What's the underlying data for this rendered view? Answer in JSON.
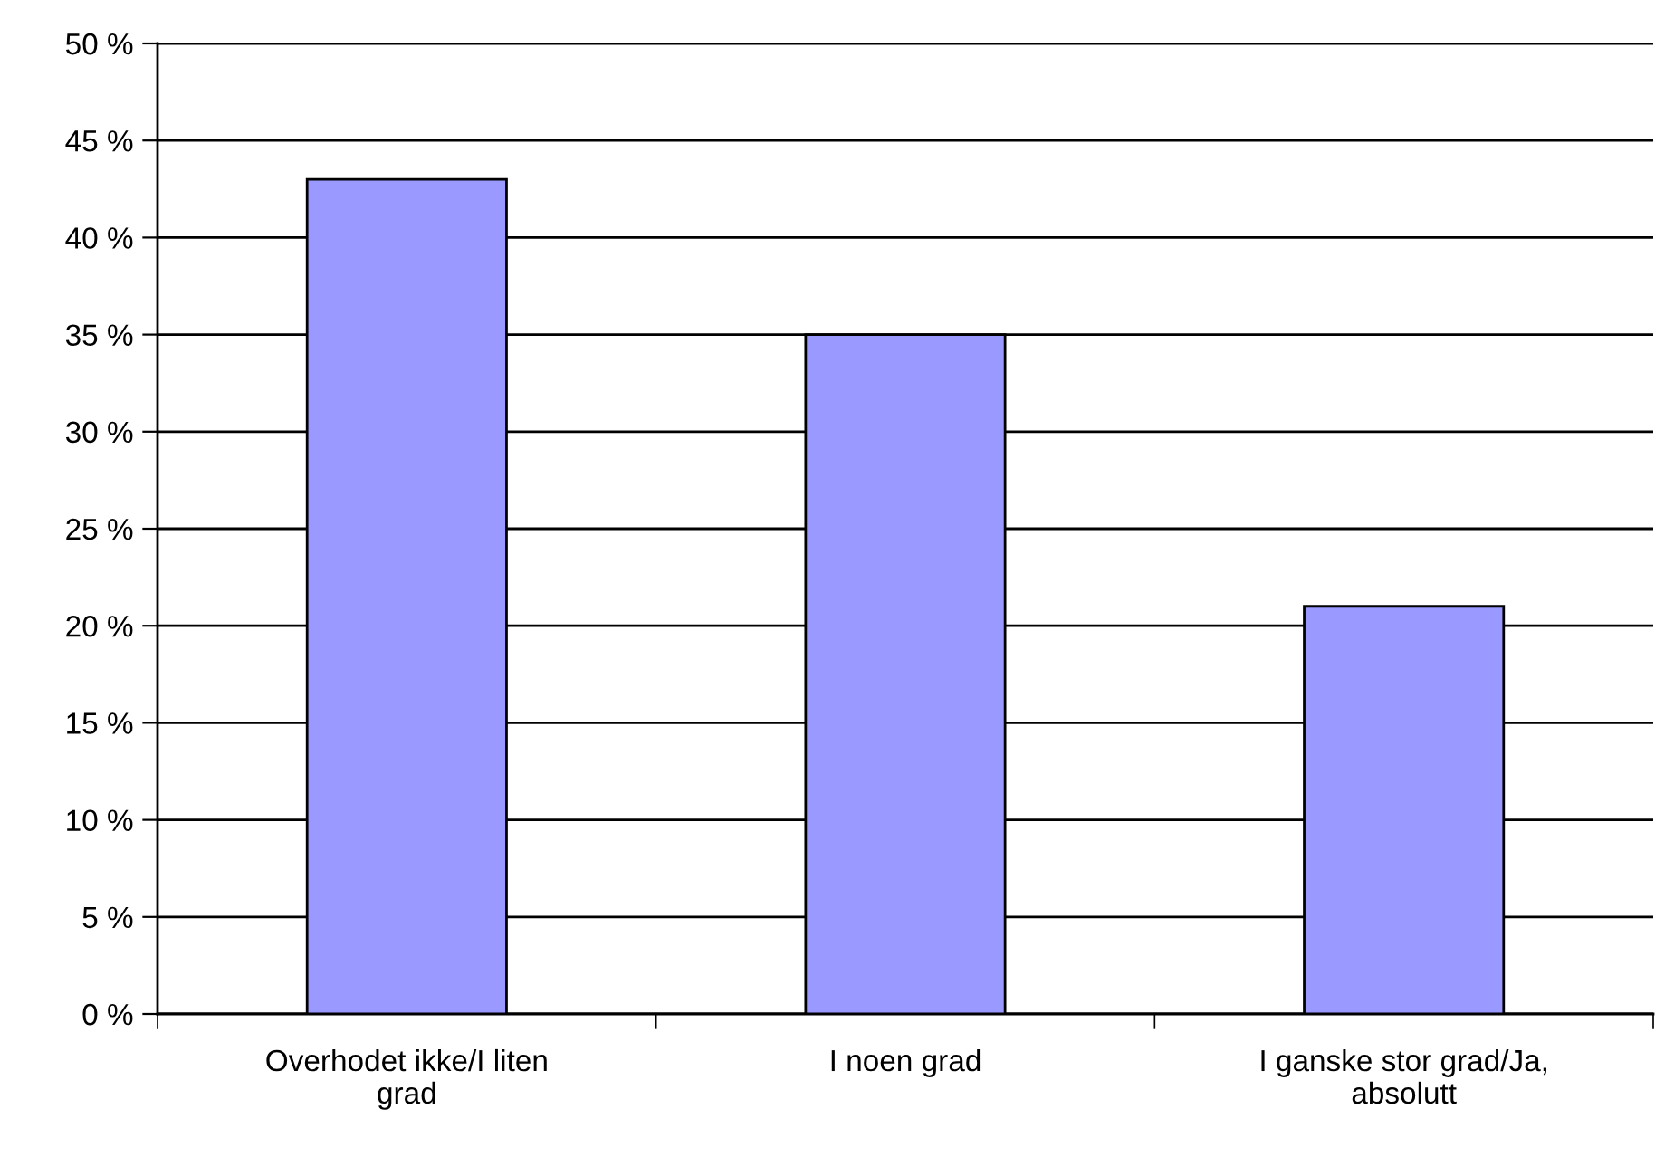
{
  "chart_data": {
    "type": "bar",
    "categories": [
      "Overhodet ikke/I liten\ngrad",
      "I noen grad",
      "I ganske stor grad/Ja,\nabsolutt"
    ],
    "values": [
      43,
      35,
      21
    ],
    "color": "#9999ff",
    "ylim": [
      0,
      50
    ],
    "yticks": [
      {
        "value": 0,
        "label": "0 %"
      },
      {
        "value": 5,
        "label": "5 %"
      },
      {
        "value": 10,
        "label": "10 %"
      },
      {
        "value": 15,
        "label": "15 %"
      },
      {
        "value": 20,
        "label": "20 %"
      },
      {
        "value": 25,
        "label": "25 %"
      },
      {
        "value": 30,
        "label": "30 %"
      },
      {
        "value": 35,
        "label": "35 %"
      },
      {
        "value": 40,
        "label": "40 %"
      },
      {
        "value": 45,
        "label": "45 %"
      },
      {
        "value": 50,
        "label": "50 %"
      }
    ],
    "grid": "y",
    "legend": false
  }
}
